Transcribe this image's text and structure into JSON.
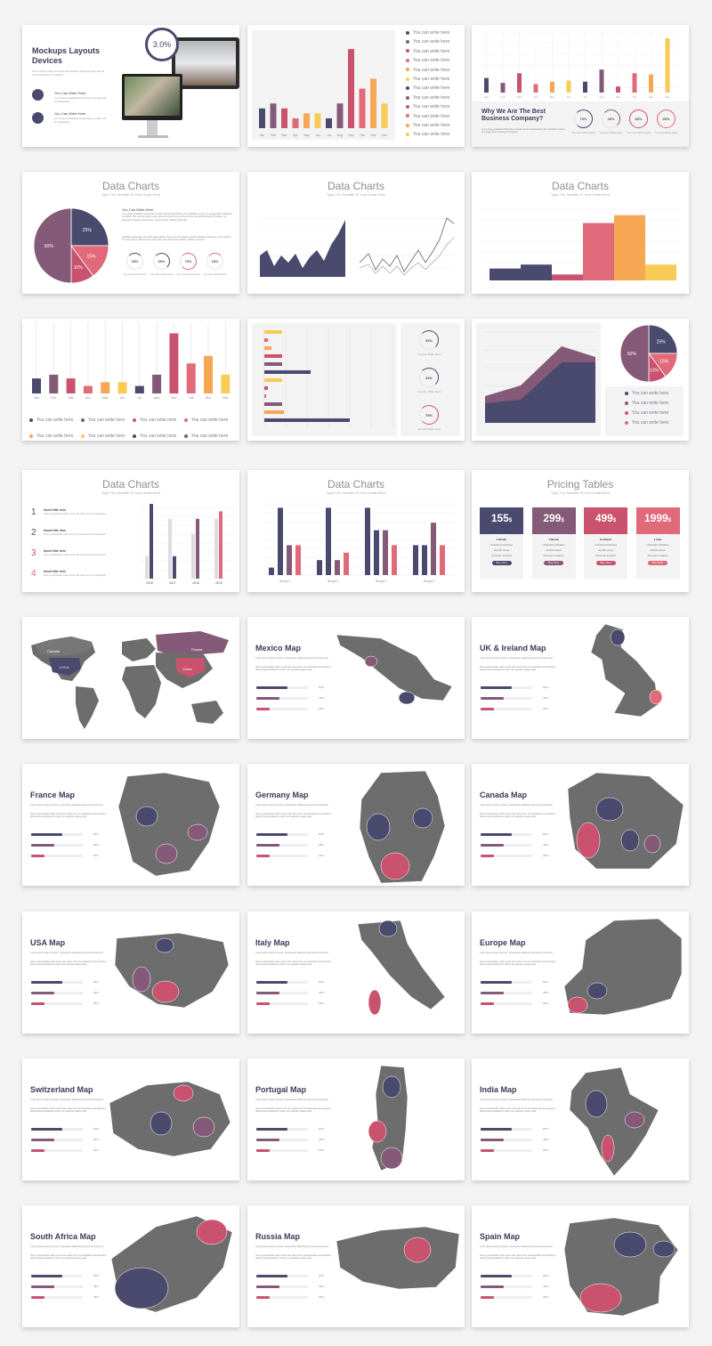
{
  "colors": {
    "navy": "#4a4a6e",
    "plum": "#855a79",
    "rose": "#c9536e",
    "pink": "#e06a7a",
    "orange": "#f6a753",
    "yellow": "#f8cb57",
    "gray": "#6d6d6d",
    "lightgray": "#f3f3f3"
  },
  "s1": {
    "title": "Mockups Layouts Devices",
    "desc": "Lorem ipsum dolor sit amet consectetur adipiscing elit sed do eiusmod tempor incididunt",
    "badge": "3.0%",
    "feature1_title": "You Can Write Here",
    "feature1_text": "It is a long established fact that a reader will be distracted",
    "feature2_title": "You Can Write Here",
    "feature2_text": "It is a long established fact that a reader will be distracted"
  },
  "months": [
    "Jan",
    "Feb",
    "Mar",
    "Apr",
    "May",
    "Jun",
    "Jul",
    "Aug",
    "Sep",
    "Oct",
    "Nov",
    "Dec"
  ],
  "legend_text": "You can write here",
  "s2": {
    "values": [
      4,
      5,
      4,
      2,
      3,
      3,
      2,
      5,
      16,
      8,
      10,
      5
    ]
  },
  "s3": {
    "heading": "Why We Are The Best Business Company?",
    "text": "It is a long established fact that a reader will be distracted by the readable content of a page when looking at its layout.",
    "values": [
      12,
      8,
      16,
      7,
      9,
      10,
      9,
      19,
      5,
      16,
      15,
      45
    ],
    "rings": [
      {
        "label": "70%",
        "caption": "You Can Write Here"
      },
      {
        "label": "40%",
        "caption": "You Can Write Here"
      },
      {
        "label": "80%",
        "caption": "You Can Write Here"
      },
      {
        "label": "90%",
        "caption": "You Can Write Here"
      }
    ]
  },
  "data_charts_title": "Data Charts",
  "data_charts_subtitle": "Type The Subtitle Of Your Great Here",
  "s4": {
    "pie": [
      {
        "label": "25%",
        "value": 25
      },
      {
        "label": "15%",
        "value": 15
      },
      {
        "label": "10%",
        "value": 10
      },
      {
        "label": "50%",
        "value": 50
      }
    ],
    "heading": "You Can Write Here",
    "para1": "It is a long established fact that a reader will be distracted by the readable content of a page when looking at its layout. The point of using Lorem Ipsum is that it has a more-or-less normal distribution of letters, as opposed to using Content here, content here, making it look like.",
    "para2": "publishing packages and web page editors now use Lorem Ipsum as their default model text, and a search for lorem ipsum will uncover many web sites still in their infancy. Various versions.",
    "rings": [
      {
        "label": "25%",
        "caption": "You Can Write Here"
      },
      {
        "label": "50%",
        "caption": "You Can Write Here"
      },
      {
        "label": "70%",
        "caption": "You Can Write Here"
      },
      {
        "label": "15%",
        "caption": "You Can Write Here"
      }
    ]
  },
  "s6": {
    "values": [
      6,
      8,
      3,
      29,
      33,
      8
    ]
  },
  "s8": {
    "values": [
      6,
      7,
      5,
      7,
      6,
      4,
      6,
      8,
      3,
      5,
      4,
      3,
      5,
      7,
      6,
      4
    ],
    "rings": [
      {
        "label": "33%",
        "caption": "You Can Write Here"
      },
      {
        "label": "33%",
        "caption": "You Can Write Here"
      },
      {
        "label": "75%",
        "caption": "You Can Write Here"
      }
    ]
  },
  "s9": {
    "pie": [
      {
        "label": "25%",
        "value": 25
      },
      {
        "label": "15%",
        "value": 15
      },
      {
        "label": "10%",
        "value": 10
      },
      {
        "label": "50%",
        "value": 50
      }
    ]
  },
  "s10": {
    "items": [
      {
        "num": "1",
        "title": "Insert title here",
        "text": "Sed ut perspiciatis unde omnis iste natus error sit voluptatem"
      },
      {
        "num": "2",
        "title": "Insert title here",
        "text": "Sed ut perspiciatis unde omnis iste natus error sit voluptatem"
      },
      {
        "num": "3",
        "title": "Insert title here",
        "text": "Sed ut perspiciatis unde omnis iste natus error sit voluptatem"
      },
      {
        "num": "4",
        "title": "Insert title here",
        "text": "Sed ut perspiciatis unde omnis iste natus error sit voluptatem"
      }
    ],
    "years": [
      "2016",
      "2017",
      "2018",
      "2019"
    ]
  },
  "s11": {
    "groups": [
      "Group 1",
      "Group 2",
      "Group 3",
      "Group 4"
    ]
  },
  "s12": {
    "title": "Pricing Tables",
    "subtitle": "Type The Subtitle Of Your Great Here",
    "plans": [
      {
        "price": "155",
        "cur": "$",
        "name": "Basic Invest",
        "period": "4 Month",
        "f1": "Unlimited websites",
        "f2": "10,000 views",
        "f3": "Premium support",
        "btn": "Buy Now"
      },
      {
        "price": "299",
        "cur": "$",
        "name": "Premium Invest",
        "period": "7 Month",
        "f1": "Unlimited websites",
        "f2": "10,000 views",
        "f3": "Premium support",
        "btn": "Buy Now"
      },
      {
        "price": "499",
        "cur": "$",
        "name": "Unique Invest",
        "period": "10 Month",
        "f1": "Unlimited websites",
        "f2": "10,000 views",
        "f3": "Premium support",
        "btn": "Buy Now"
      },
      {
        "price": "1999",
        "cur": "$",
        "name": "Exclusive Invest",
        "period": "1 Year",
        "f1": "Unlimited websites",
        "f2": "10,000 views",
        "f3": "Premium support",
        "btn": "Buy Now"
      }
    ]
  },
  "world": {
    "labels": [
      "Canada",
      "U.S.A",
      "Russia",
      "China"
    ]
  },
  "map_text1": "Lorem ipsum dolor sit amet, consectetur adipiscing elit sed do eiusmod",
  "map_text2": "Sed ut perspiciatis unde omnis iste natus error sit voluptatem accusantium doloremque laudantium totam rem aperiam eaque ipsa",
  "map_pcts": [
    "60%",
    "45%",
    "25%"
  ],
  "maps": [
    "Mexico Map",
    "UK & Ireland Map",
    "France Map",
    "Germany Map",
    "Canada Map",
    "USA Map",
    "Italy Map",
    "Europe Map",
    "Switzerland Map",
    "Portugal Map",
    "India Map",
    "South Africa Map",
    "Russia Map",
    "Spain Map"
  ]
}
